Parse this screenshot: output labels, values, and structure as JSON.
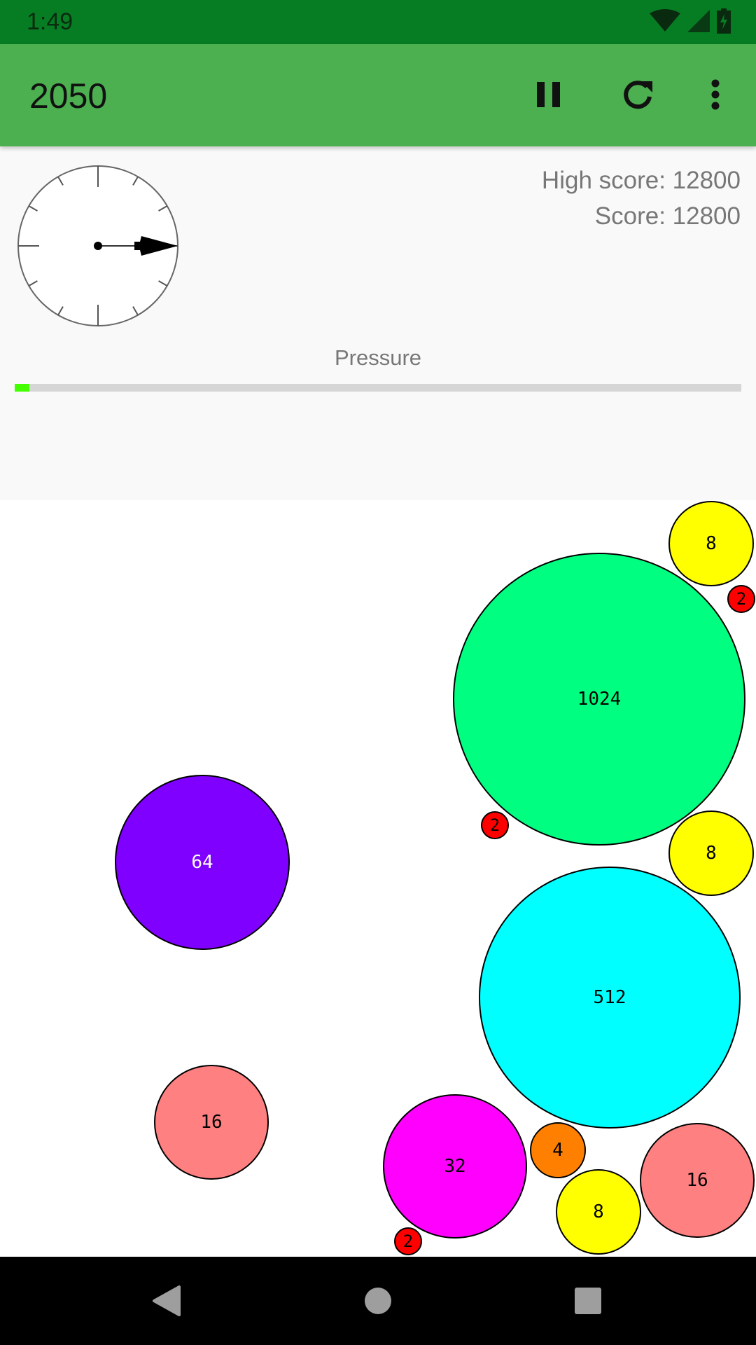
{
  "status_bar": {
    "time": "1:49",
    "icons": [
      "wifi-icon",
      "signal-icon",
      "battery-charging-icon"
    ]
  },
  "app_bar": {
    "title": "2050",
    "actions": [
      "pause-icon",
      "refresh-icon",
      "more-vert-icon"
    ]
  },
  "header": {
    "high_score": "High score: 12800",
    "score": "Score: 12800",
    "pressure_label": "Pressure",
    "pressure_percent": 2,
    "dial_direction_degrees": 90
  },
  "balls": [
    {
      "value": "8",
      "color": "#FFFF00"
    },
    {
      "value": "2",
      "color": "#FF0000"
    },
    {
      "value": "1024",
      "color": "#00FF80"
    },
    {
      "value": "2",
      "color": "#FF0000"
    },
    {
      "value": "8",
      "color": "#FFFF00"
    },
    {
      "value": "64",
      "color": "#8000FF",
      "text_color": "#FFFFFF"
    },
    {
      "value": "512",
      "color": "#00FFFF"
    },
    {
      "value": "16",
      "color": "#FF8080"
    },
    {
      "value": "32",
      "color": "#FF00FF"
    },
    {
      "value": "4",
      "color": "#FF8000"
    },
    {
      "value": "8",
      "color": "#FFFF00"
    },
    {
      "value": "16",
      "color": "#FF8080"
    },
    {
      "value": "2",
      "color": "#FF0000"
    }
  ],
  "nav_bar": {
    "buttons": [
      "back-icon",
      "home-icon",
      "recents-icon"
    ]
  }
}
